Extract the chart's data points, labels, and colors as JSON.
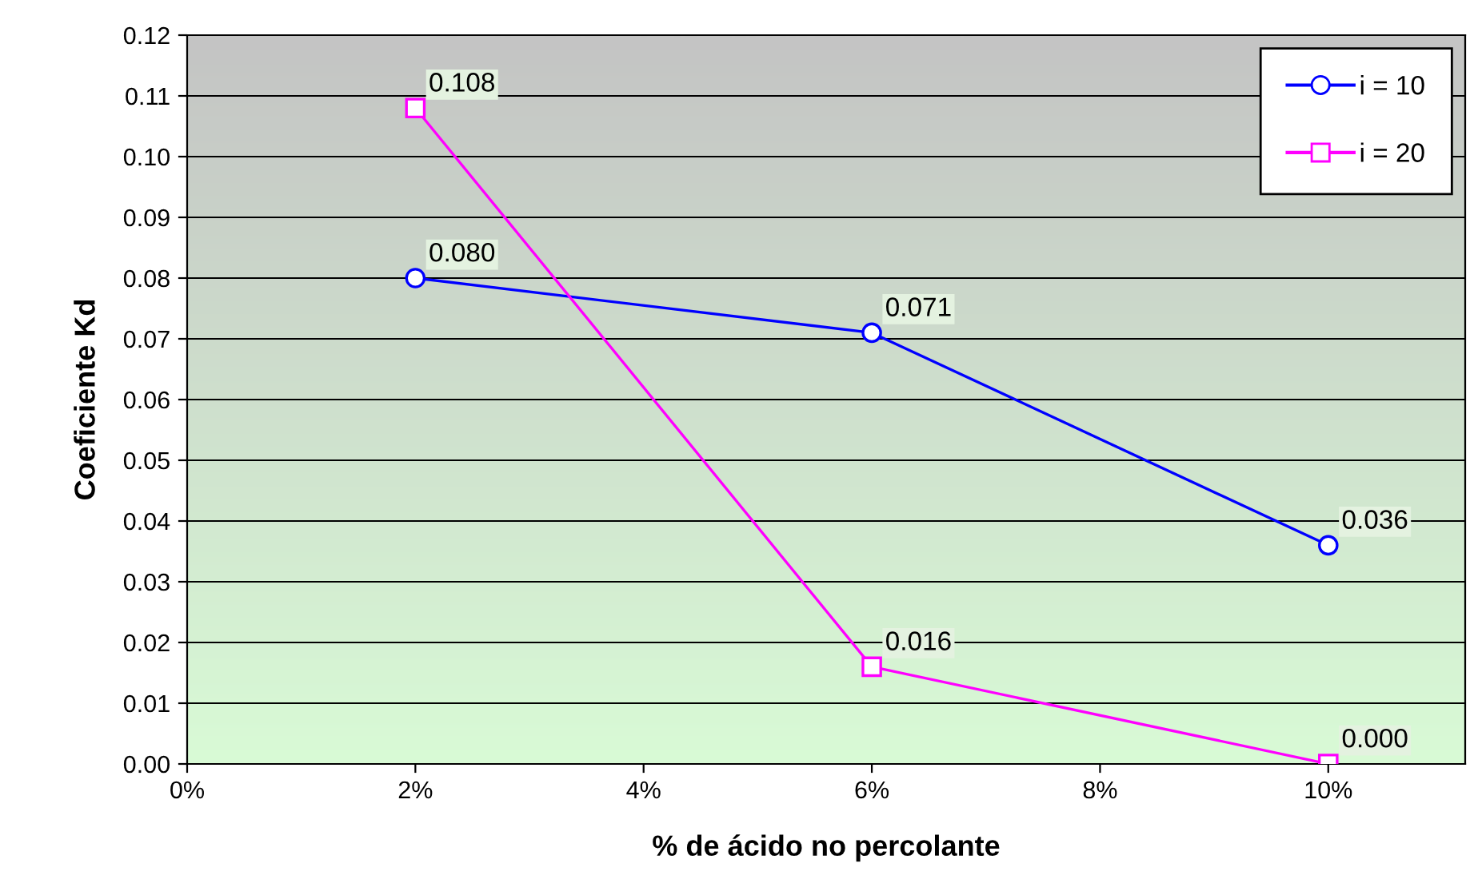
{
  "chart_data": {
    "type": "line",
    "xlabel": "% de ácido no percolante",
    "ylabel": "Coeficiente Kd",
    "x": [
      2,
      6,
      10
    ],
    "series": [
      {
        "name": "i = 10",
        "color": "#0000ff",
        "marker": "circle",
        "values": [
          0.08,
          0.071,
          0.036
        ],
        "value_labels": [
          "0.080",
          "0.071",
          "0.036"
        ]
      },
      {
        "name": "i = 20",
        "color": "#ff00ff",
        "marker": "square",
        "values": [
          0.108,
          0.016,
          0.0
        ],
        "value_labels": [
          "0.108",
          "0.016",
          "0.000"
        ]
      }
    ],
    "xlim": [
      0,
      11.2
    ],
    "xticks": [
      {
        "value": 0,
        "label": "0%"
      },
      {
        "value": 2,
        "label": "2%"
      },
      {
        "value": 4,
        "label": "4%"
      },
      {
        "value": 6,
        "label": "6%"
      },
      {
        "value": 8,
        "label": "8%"
      },
      {
        "value": 10,
        "label": "10%"
      }
    ],
    "ylim": [
      0,
      0.12
    ],
    "yticks": [
      {
        "value": 0,
        "label": "0.00"
      },
      {
        "value": 0.01,
        "label": "0.01"
      },
      {
        "value": 0.02,
        "label": "0.02"
      },
      {
        "value": 0.03,
        "label": "0.03"
      },
      {
        "value": 0.04,
        "label": "0.04"
      },
      {
        "value": 0.05,
        "label": "0.05"
      },
      {
        "value": 0.06,
        "label": "0.06"
      },
      {
        "value": 0.07,
        "label": "0.07"
      },
      {
        "value": 0.08,
        "label": "0.08"
      },
      {
        "value": 0.09,
        "label": "0.09"
      },
      {
        "value": 0.1,
        "label": "0.10"
      },
      {
        "value": 0.11,
        "label": "0.11"
      },
      {
        "value": 0.12,
        "label": "0.12"
      }
    ],
    "grid": "y",
    "legend": "top right",
    "line_style": "solid"
  }
}
